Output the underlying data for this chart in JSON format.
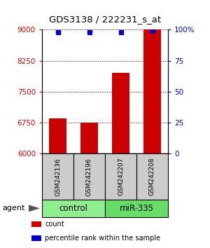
{
  "title": "GDS3138 / 222231_s_at",
  "samples": [
    "GSM242136",
    "GSM242196",
    "GSM242207",
    "GSM242208"
  ],
  "bar_values": [
    6850,
    6750,
    7950,
    9450
  ],
  "percentile_pct": [
    98,
    98,
    98,
    99
  ],
  "ylim_left": [
    6000,
    9000
  ],
  "ylim_right": [
    0,
    100
  ],
  "yticks_left": [
    6000,
    6750,
    7500,
    8250,
    9000
  ],
  "yticks_right": [
    0,
    25,
    50,
    75,
    100
  ],
  "ytick_labels_right": [
    "0",
    "25",
    "50",
    "75",
    "100%"
  ],
  "bar_color": "#cc0000",
  "dot_color": "#0000cc",
  "groups": [
    {
      "label": "control",
      "indices": [
        0,
        1
      ],
      "color": "#90ee90"
    },
    {
      "label": "miR-335",
      "indices": [
        2,
        3
      ],
      "color": "#66dd66"
    }
  ],
  "agent_label": "agent",
  "legend_items": [
    {
      "label": "count",
      "color": "#cc0000"
    },
    {
      "label": "percentile rank within the sample",
      "color": "#0000cc"
    }
  ],
  "bar_width": 0.55,
  "sample_box_color": "#cccccc",
  "figsize": [
    3.0,
    3.54
  ],
  "dpi": 100
}
